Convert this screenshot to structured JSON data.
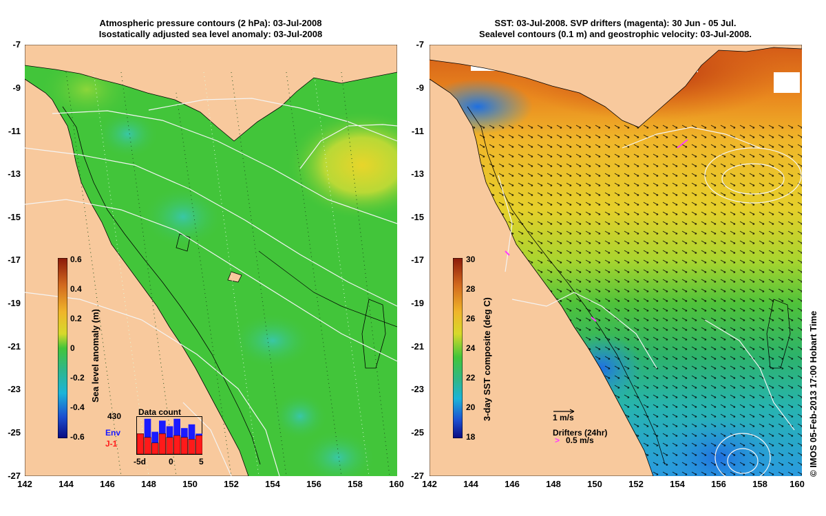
{
  "left_panel": {
    "title_line1": "Atmospheric pressure contours (2 hPa): 03-Jul-2008",
    "title_line2": "Isostatically adjusted sea level anomaly: 03-Jul-2008",
    "colorbar": {
      "label": "Sea level anomaly (m)",
      "ticks": [
        "0.6",
        "0.4",
        "0.2",
        "0",
        "-0.2",
        "-0.4",
        "-0.6"
      ]
    },
    "histogram": {
      "title": "Data count",
      "max_label": "430",
      "env_label": "Env",
      "j1_label": "J-1",
      "x_ticks": [
        "-5d",
        "0",
        "5"
      ],
      "env_counts": [
        0.5,
        0.95,
        0.6,
        0.9,
        0.75,
        0.95,
        0.7,
        0.8,
        0.55
      ],
      "j1_counts": [
        0.55,
        0.45,
        0.3,
        0.55,
        0.45,
        0.5,
        0.45,
        0.4,
        0.5
      ]
    }
  },
  "right_panel": {
    "title_line1": "SST: 03-Jul-2008. SVP drifters (magenta): 30 Jun - 05 Jul.",
    "title_line2": "Sealevel contours (0.1 m) and geostrophic velocity: 03-Jul-2008.",
    "colorbar": {
      "label": "3-day SST composite (deg C)",
      "ticks": [
        "30",
        "28",
        "26",
        "24",
        "22",
        "20",
        "18"
      ]
    },
    "scale_arrow_label": "1 m/s",
    "drifters_label": "Drifters (24hr)",
    "drifter_arrow_label": "0.5 m/s"
  },
  "axes": {
    "lat_ticks": [
      "-7",
      "-9",
      "-11",
      "-13",
      "-15",
      "-17",
      "-19",
      "-21",
      "-23",
      "-25",
      "-27"
    ],
    "lon_ticks": [
      "142",
      "144",
      "146",
      "148",
      "150",
      "152",
      "154",
      "156",
      "158",
      "160"
    ]
  },
  "credit": "© IMOS 05-Feb-2013 17:00 Hobart Time",
  "colors": {
    "land": "#f8c99d",
    "sla_background": "#3fc53a",
    "white_contour": "#f4f4f4"
  }
}
